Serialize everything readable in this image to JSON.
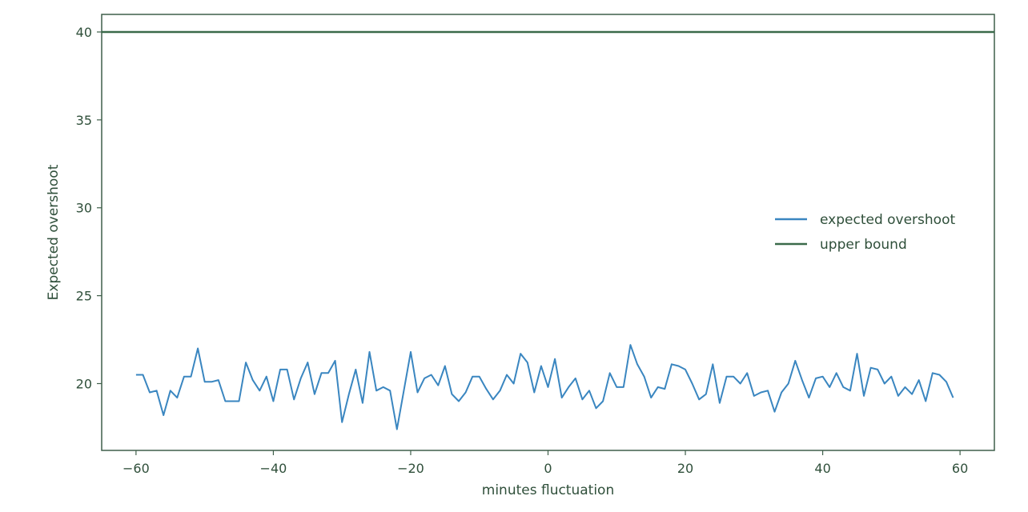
{
  "chart_data": {
    "type": "line",
    "title": "",
    "xlabel": "minutes fluctuation",
    "ylabel": "Expected overshoot",
    "xlim": [
      -65,
      65
    ],
    "ylim": [
      16.2,
      41
    ],
    "xticks": [
      -60,
      -40,
      -20,
      0,
      20,
      40,
      60
    ],
    "yticks": [
      20,
      25,
      30,
      35,
      40
    ],
    "grid": false,
    "legend_position": "center-right",
    "series": [
      {
        "name": "expected overshoot",
        "color": "#3a86c0",
        "x": [
          -60,
          -59,
          -58,
          -57,
          -56,
          -55,
          -54,
          -53,
          -52,
          -51,
          -50,
          -49,
          -48,
          -47,
          -46,
          -45,
          -44,
          -43,
          -42,
          -41,
          -40,
          -39,
          -38,
          -37,
          -36,
          -35,
          -34,
          -33,
          -32,
          -31,
          -30,
          -29,
          -28,
          -27,
          -26,
          -25,
          -24,
          -23,
          -22,
          -21,
          -20,
          -19,
          -18,
          -17,
          -16,
          -15,
          -14,
          -13,
          -12,
          -11,
          -10,
          -9,
          -8,
          -7,
          -6,
          -5,
          -4,
          -3,
          -2,
          -1,
          0,
          1,
          2,
          3,
          4,
          5,
          6,
          7,
          8,
          9,
          10,
          11,
          12,
          13,
          14,
          15,
          16,
          17,
          18,
          19,
          20,
          21,
          22,
          23,
          24,
          25,
          26,
          27,
          28,
          29,
          30,
          31,
          32,
          33,
          34,
          35,
          36,
          37,
          38,
          39,
          40,
          41,
          42,
          43,
          44,
          45,
          46,
          47,
          48,
          49,
          50,
          51,
          52,
          53,
          54,
          55,
          56,
          57,
          58,
          59
        ],
        "y": [
          20.5,
          20.5,
          19.5,
          19.6,
          18.2,
          19.6,
          19.2,
          20.4,
          20.4,
          22.0,
          20.1,
          20.1,
          20.2,
          19.0,
          19.0,
          19.0,
          21.2,
          20.2,
          19.6,
          20.4,
          19.0,
          20.8,
          20.8,
          19.1,
          20.3,
          21.2,
          19.4,
          20.6,
          20.6,
          21.3,
          17.8,
          19.4,
          20.8,
          18.9,
          21.8,
          19.6,
          19.8,
          19.6,
          17.4,
          19.6,
          21.8,
          19.5,
          20.3,
          20.5,
          19.9,
          21.0,
          19.4,
          19.0,
          19.5,
          20.4,
          20.4,
          19.7,
          19.1,
          19.6,
          20.5,
          20.0,
          21.7,
          21.2,
          19.5,
          21.0,
          19.8,
          21.4,
          19.2,
          19.8,
          20.3,
          19.1,
          19.6,
          18.6,
          19.0,
          20.6,
          19.8,
          19.8,
          22.2,
          21.1,
          20.4,
          19.2,
          19.8,
          19.7,
          21.1,
          21.0,
          20.8,
          20.0,
          19.1,
          19.4,
          21.1,
          18.9,
          20.4,
          20.4,
          20.0,
          20.6,
          19.3,
          19.5,
          19.6,
          18.4,
          19.5,
          20.0,
          21.3,
          20.2,
          19.2,
          20.3,
          20.4,
          19.8,
          20.6,
          19.8,
          19.6,
          21.7,
          19.3,
          20.9,
          20.8,
          20.0,
          20.4,
          19.3,
          19.8,
          19.4,
          20.2,
          19.0,
          20.6,
          20.5,
          20.1,
          19.2
        ]
      },
      {
        "name": "upper bound",
        "color": "#3a6a4a",
        "x": [
          -65,
          65
        ],
        "y": [
          40,
          40
        ]
      }
    ]
  }
}
